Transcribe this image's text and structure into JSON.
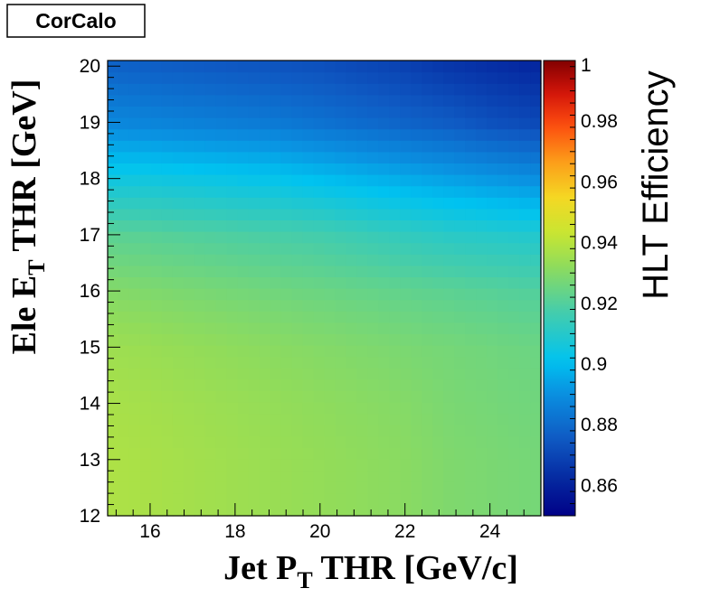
{
  "tag": "CorCalo",
  "chart_data": {
    "type": "heatmap",
    "xlabel": {
      "main": "Jet P",
      "sub": "T",
      "rest": " THR [GeV/c]"
    },
    "ylabel": {
      "main": "Ele E",
      "sub": "T",
      "rest": " THR [GeV]"
    },
    "xlim": [
      15,
      25.2
    ],
    "ylim": [
      12,
      20.1
    ],
    "xticks": [
      16,
      18,
      20,
      22,
      24
    ],
    "yticks": [
      12,
      13,
      14,
      15,
      16,
      17,
      18,
      19,
      20
    ],
    "colorbar": {
      "title": "HLT Efficiency",
      "range": [
        0.85,
        1.0
      ],
      "ticks": [
        "0.86",
        "0.88",
        "0.9",
        "0.92",
        "0.94",
        "0.96",
        "0.98",
        "1"
      ]
    },
    "x": [
      15,
      16,
      17,
      18,
      19,
      20,
      21,
      22,
      23,
      24,
      25
    ],
    "y": [
      12,
      13,
      14,
      15,
      16,
      17,
      18,
      19,
      20
    ],
    "z": [
      [
        0.938,
        0.937,
        0.936,
        0.935,
        0.934,
        0.933,
        0.932,
        0.931,
        0.929,
        0.928,
        0.927
      ],
      [
        0.938,
        0.937,
        0.936,
        0.935,
        0.934,
        0.933,
        0.932,
        0.931,
        0.929,
        0.928,
        0.927
      ],
      [
        0.937,
        0.936,
        0.935,
        0.934,
        0.933,
        0.932,
        0.931,
        0.93,
        0.928,
        0.927,
        0.926
      ],
      [
        0.935,
        0.934,
        0.933,
        0.932,
        0.931,
        0.93,
        0.929,
        0.928,
        0.927,
        0.926,
        0.925
      ],
      [
        0.93,
        0.929,
        0.928,
        0.927,
        0.926,
        0.925,
        0.924,
        0.923,
        0.922,
        0.921,
        0.92
      ],
      [
        0.922,
        0.921,
        0.92,
        0.919,
        0.918,
        0.917,
        0.915,
        0.913,
        0.911,
        0.91,
        0.909
      ],
      [
        0.905,
        0.905,
        0.904,
        0.903,
        0.902,
        0.9,
        0.898,
        0.896,
        0.894,
        0.892,
        0.89
      ],
      [
        0.888,
        0.887,
        0.886,
        0.885,
        0.884,
        0.882,
        0.88,
        0.878,
        0.876,
        0.873,
        0.871
      ],
      [
        0.878,
        0.877,
        0.876,
        0.875,
        0.874,
        0.873,
        0.871,
        0.869,
        0.866,
        0.864,
        0.862
      ]
    ]
  }
}
